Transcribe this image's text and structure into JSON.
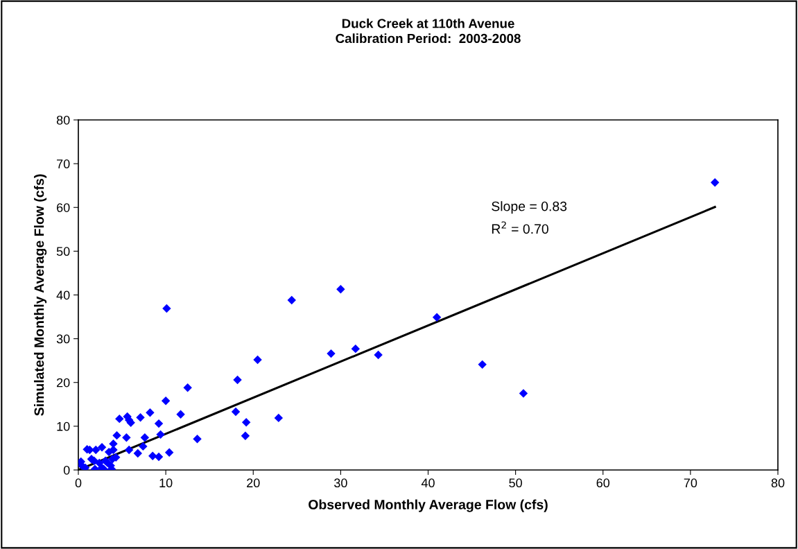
{
  "chart_data": {
    "type": "scatter",
    "title": "Duck Creek at 110th Avenue\nCalibration Period:  2003-2008",
    "xlabel": "Observed Monthly Average Flow (cfs)",
    "ylabel": "Simulated Monthly Average Flow (cfs)",
    "xlim": [
      0,
      80
    ],
    "ylim": [
      0,
      80
    ],
    "xticks": [
      0,
      10,
      20,
      30,
      40,
      50,
      60,
      70,
      80
    ],
    "yticks": [
      0,
      10,
      20,
      30,
      40,
      50,
      60,
      70,
      80
    ],
    "grid": false,
    "legend": false,
    "annotations": [
      "Slope = 0.83",
      "R$^{2}$ = 0.70"
    ],
    "series": [
      {
        "color": "#0000ff",
        "marker": "diamond",
        "x": [
          72.8,
          41.0,
          46.2,
          50.9,
          30.0,
          24.4,
          28.9,
          31.7,
          34.3,
          20.5,
          18.2,
          18.0,
          19.2,
          19.1,
          22.9,
          10.1,
          12.5,
          11.7,
          13.6,
          10.4,
          10.0,
          4.7,
          5.6,
          5.8,
          6.0,
          7.1,
          8.2,
          9.2,
          9.4,
          4.4,
          5.5,
          7.6,
          4.0,
          2.7,
          1.0,
          1.3,
          2.0,
          3.5,
          4.0,
          4.3,
          5.8,
          6.8,
          7.4,
          8.5,
          9.2,
          0.3,
          1.5,
          1.8,
          2.4,
          3.1,
          3.3,
          3.9,
          0.4,
          0.8,
          1.9,
          2.7,
          2.9,
          3.8,
          3.7
        ],
        "values": [
          65.7,
          34.9,
          24.1,
          17.5,
          41.3,
          38.8,
          26.6,
          27.7,
          26.3,
          25.2,
          20.6,
          13.3,
          10.9,
          7.8,
          11.9,
          36.9,
          18.8,
          12.7,
          7.1,
          4.0,
          15.8,
          11.7,
          12.2,
          11.4,
          10.8,
          12.0,
          13.1,
          10.6,
          8.1,
          7.9,
          7.4,
          7.4,
          6.0,
          5.2,
          4.7,
          4.6,
          4.6,
          4.1,
          4.6,
          2.9,
          4.6,
          3.8,
          5.4,
          3.2,
          3.0,
          1.9,
          2.5,
          2.1,
          1.6,
          2.1,
          1.7,
          2.5,
          1.0,
          0.5,
          0.2,
          0.5,
          0.2,
          0.2,
          1.0
        ]
      },
      {
        "type": "line",
        "color": "#000000",
        "marker": "none",
        "x": [
          0,
          72.8
        ],
        "values": [
          0,
          60.1
        ]
      }
    ]
  }
}
